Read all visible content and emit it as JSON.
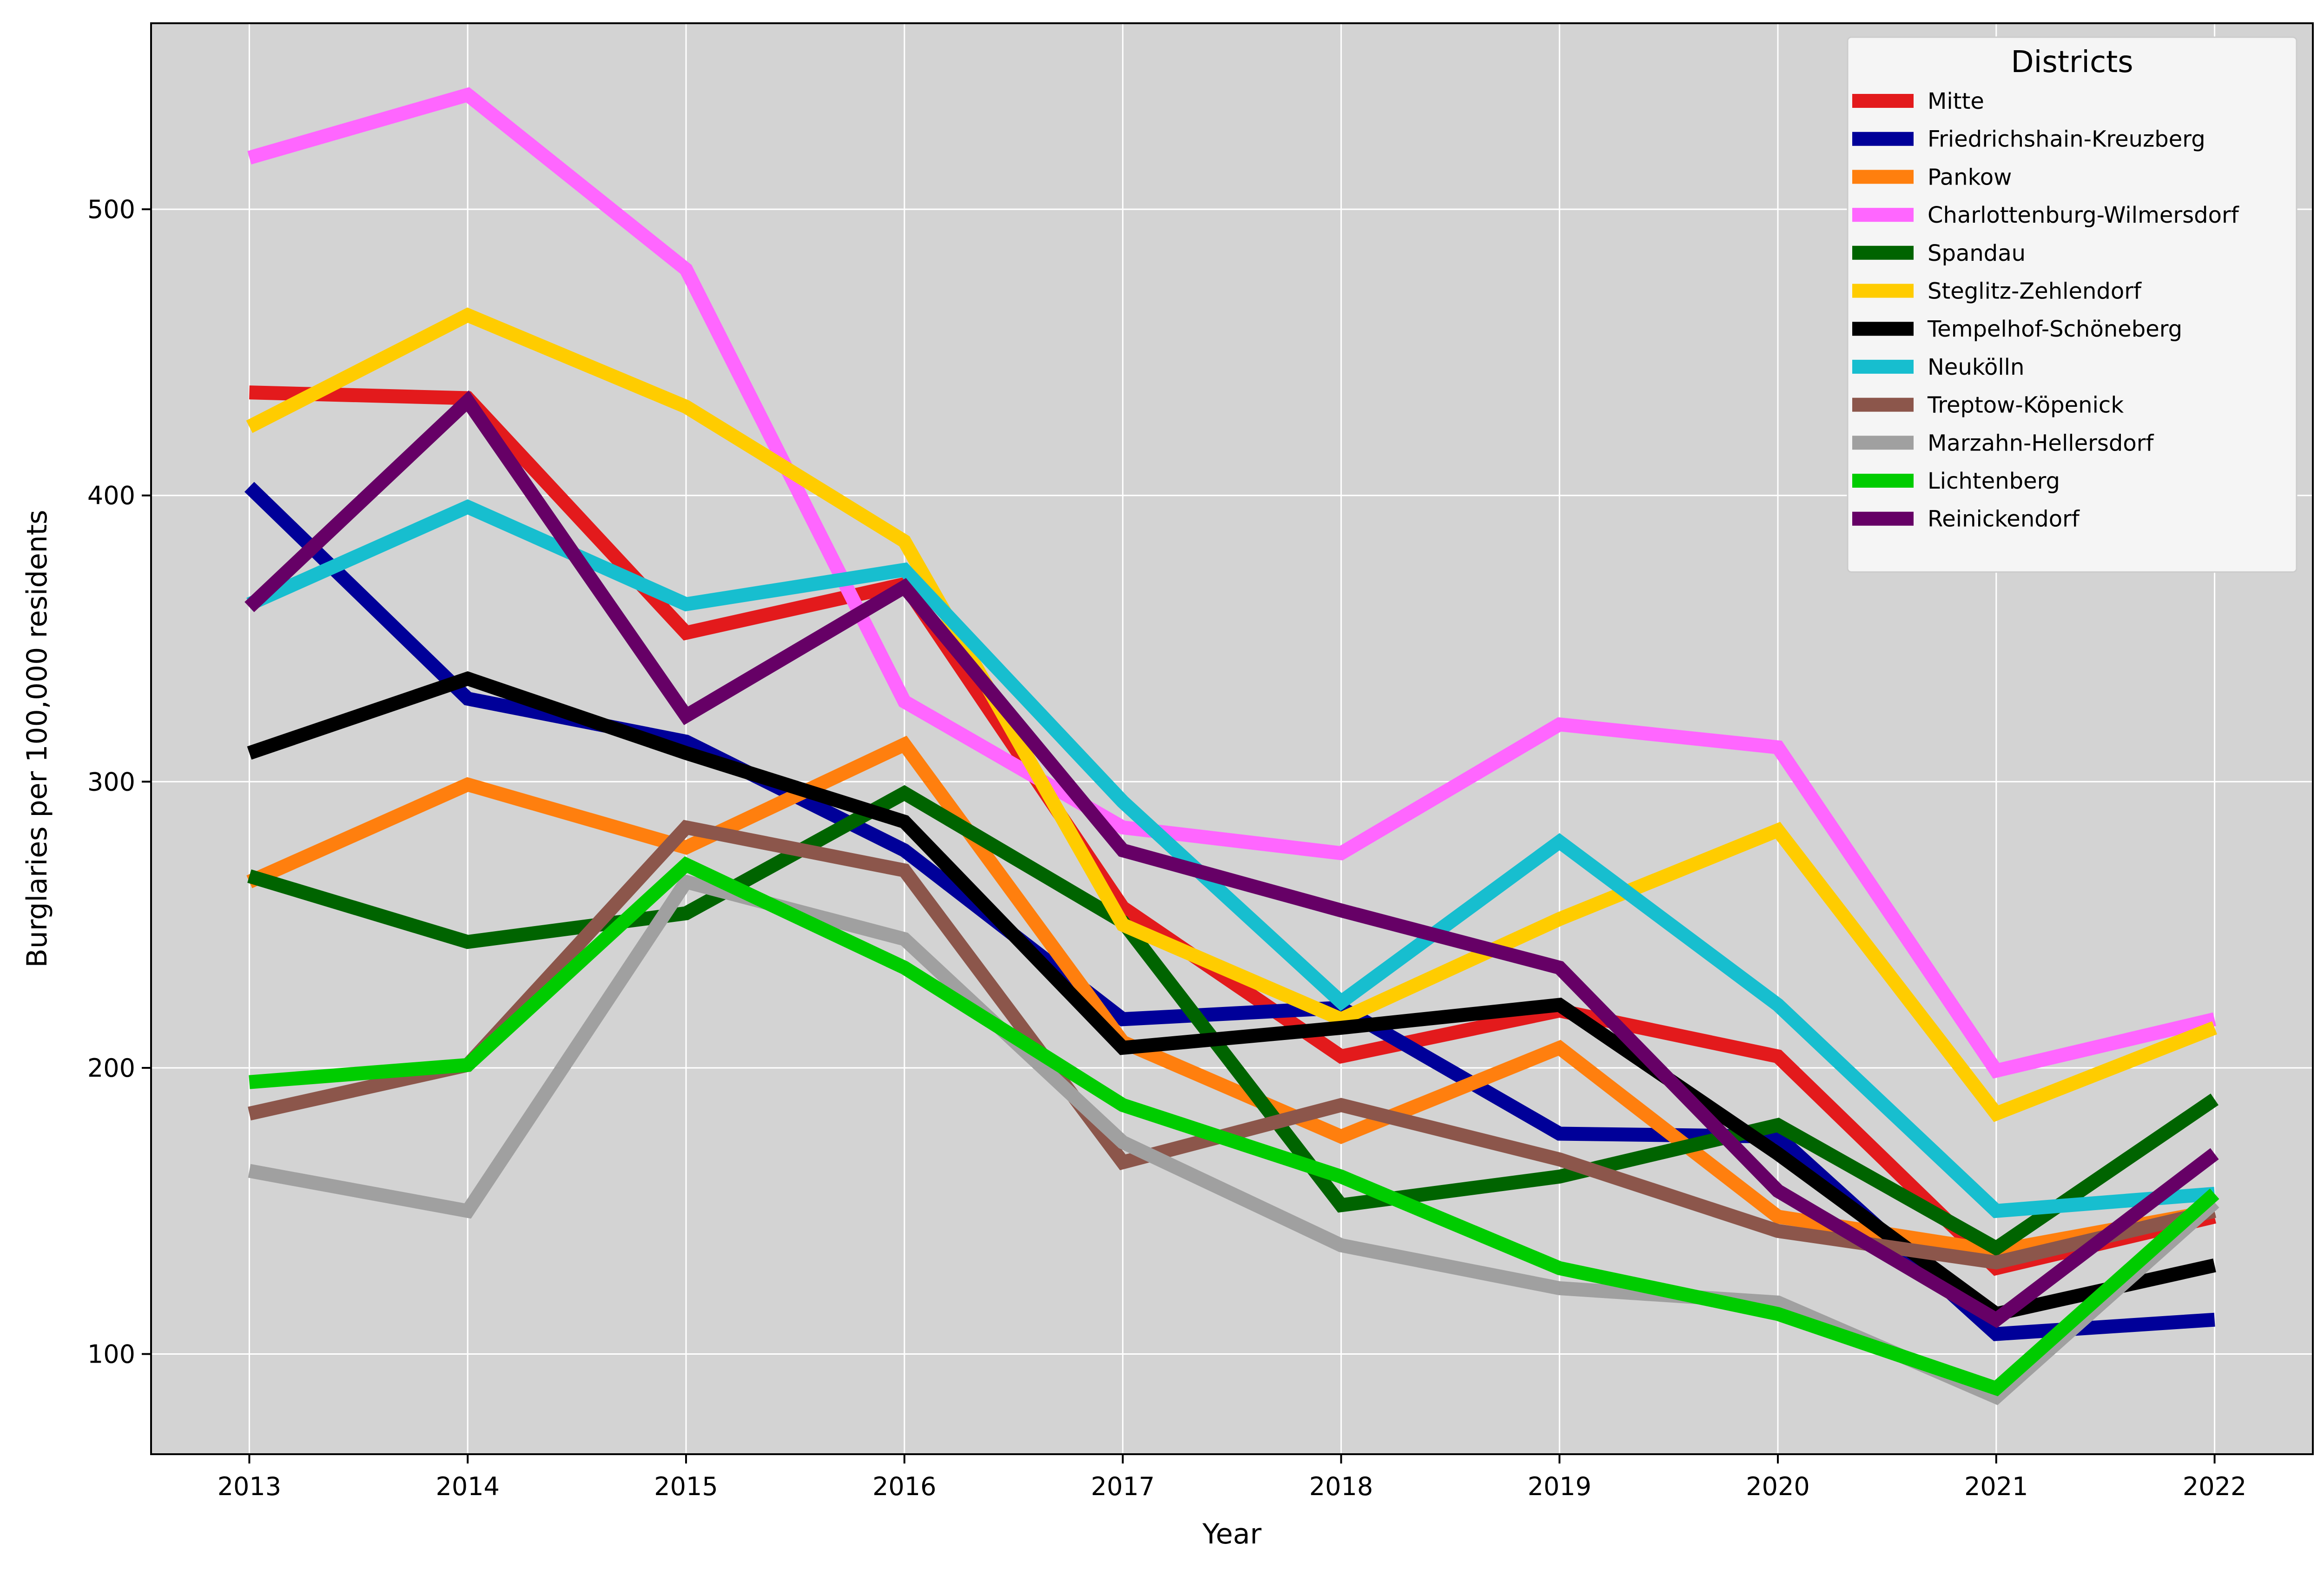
{
  "chart_data": {
    "type": "line",
    "xlabel": "Year",
    "ylabel": "Burglaries per 100,000 residents",
    "x": [
      2013,
      2014,
      2015,
      2016,
      2017,
      2018,
      2019,
      2020,
      2021,
      2022
    ],
    "xlim": [
      2012.55,
      2022.45
    ],
    "ylim": [
      65,
      565
    ],
    "yticks": [
      100,
      200,
      300,
      400,
      500
    ],
    "grid": true,
    "background": "#d3d3d3",
    "legend": {
      "title": "Districts",
      "placement": "top-right"
    },
    "series": [
      {
        "name": "Mitte",
        "color": "#e31a1c",
        "values": [
          436,
          434,
          352,
          369,
          256,
          204,
          220,
          204,
          130,
          148
        ]
      },
      {
        "name": "Friedrichshain-Kreuzberg",
        "color": "#000099",
        "values": [
          403,
          329,
          314,
          276,
          217,
          221,
          177,
          176,
          107,
          112
        ]
      },
      {
        "name": "Pankow",
        "color": "#ff7f0e",
        "values": [
          265,
          299,
          277,
          313,
          209,
          176,
          207,
          148,
          136,
          150
        ]
      },
      {
        "name": "Charlottenburg-Wilmersdorf",
        "color": "#ff66ff",
        "values": [
          518,
          540,
          479,
          328,
          284,
          275,
          320,
          312,
          199,
          217
        ]
      },
      {
        "name": "Spandau",
        "color": "#006400",
        "values": [
          267,
          244,
          254,
          296,
          251,
          152,
          162,
          180,
          137,
          189
        ]
      },
      {
        "name": "Steglitz-Zehlendorf",
        "color": "#ffcc00",
        "values": [
          424,
          463,
          431,
          384,
          250,
          217,
          252,
          283,
          184,
          214
        ]
      },
      {
        "name": "Tempelhof-Schöneberg",
        "color": "#000000",
        "values": [
          310,
          336,
          310,
          286,
          207,
          214,
          222,
          170,
          114,
          131
        ]
      },
      {
        "name": "Neukölln",
        "color": "#17becf",
        "values": [
          362,
          396,
          362,
          374,
          293,
          223,
          279,
          222,
          150,
          156
        ]
      },
      {
        "name": "Treptow-Köpenick",
        "color": "#8c564b",
        "values": [
          184,
          201,
          284,
          269,
          167,
          187,
          168,
          143,
          132,
          150
        ]
      },
      {
        "name": "Marzahn-Hellersdorf",
        "color": "#a0a0a0",
        "values": [
          164,
          150,
          265,
          245,
          174,
          138,
          123,
          118,
          85,
          153
        ]
      },
      {
        "name": "Lichtenberg",
        "color": "#00cc00",
        "values": [
          195,
          201,
          271,
          235,
          187,
          162,
          130,
          114,
          88,
          156
        ]
      },
      {
        "name": "Reinickendorf",
        "color": "#660066",
        "values": [
          361,
          433,
          323,
          368,
          276,
          255,
          235,
          157,
          112,
          170
        ]
      }
    ]
  }
}
